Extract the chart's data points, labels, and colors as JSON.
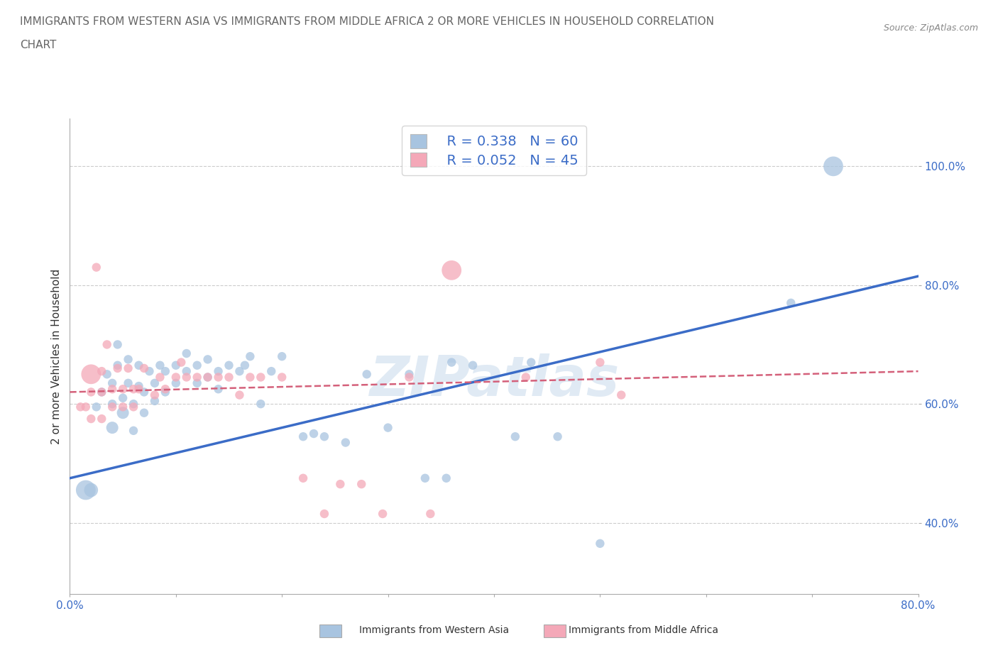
{
  "title_line1": "IMMIGRANTS FROM WESTERN ASIA VS IMMIGRANTS FROM MIDDLE AFRICA 2 OR MORE VEHICLES IN HOUSEHOLD CORRELATION",
  "title_line2": "CHART",
  "source": "Source: ZipAtlas.com",
  "ylabel": "2 or more Vehicles in Household",
  "xlim": [
    0.0,
    0.8
  ],
  "ylim": [
    0.28,
    1.08
  ],
  "ytick_positions": [
    0.4,
    0.6,
    0.8,
    1.0
  ],
  "ytick_labels": [
    "40.0%",
    "60.0%",
    "80.0%",
    "100.0%"
  ],
  "xtick_positions": [
    0.0,
    0.1,
    0.2,
    0.3,
    0.4,
    0.5,
    0.6,
    0.7,
    0.8
  ],
  "xtick_labels_shown": {
    "0.0": "0.0%",
    "0.8": "80.0%"
  },
  "grid_color": "#cccccc",
  "background_color": "#ffffff",
  "watermark": "ZIPatlas",
  "color_blue": "#a8c4e0",
  "color_pink": "#f4a8b8",
  "line_blue": "#3b6cc7",
  "line_pink": "#d4607a",
  "legend_label1": "Immigrants from Western Asia",
  "legend_label2": "Immigrants from Middle Africa",
  "legend_r1": "R = 0.338",
  "legend_n1": "N = 60",
  "legend_r2": "R = 0.052",
  "legend_n2": "N = 45",
  "blue_scatter_x": [
    0.015,
    0.02,
    0.025,
    0.03,
    0.035,
    0.04,
    0.04,
    0.04,
    0.045,
    0.045,
    0.05,
    0.05,
    0.055,
    0.055,
    0.06,
    0.06,
    0.065,
    0.065,
    0.07,
    0.07,
    0.075,
    0.08,
    0.08,
    0.085,
    0.09,
    0.09,
    0.1,
    0.1,
    0.11,
    0.11,
    0.12,
    0.12,
    0.13,
    0.13,
    0.14,
    0.14,
    0.15,
    0.16,
    0.165,
    0.17,
    0.18,
    0.19,
    0.2,
    0.22,
    0.23,
    0.24,
    0.26,
    0.28,
    0.3,
    0.32,
    0.335,
    0.355,
    0.36,
    0.38,
    0.42,
    0.435,
    0.46,
    0.5,
    0.68,
    0.72
  ],
  "blue_scatter_y": [
    0.455,
    0.455,
    0.595,
    0.62,
    0.65,
    0.56,
    0.6,
    0.635,
    0.665,
    0.7,
    0.585,
    0.61,
    0.635,
    0.675,
    0.555,
    0.6,
    0.63,
    0.665,
    0.585,
    0.62,
    0.655,
    0.605,
    0.635,
    0.665,
    0.62,
    0.655,
    0.635,
    0.665,
    0.655,
    0.685,
    0.635,
    0.665,
    0.645,
    0.675,
    0.625,
    0.655,
    0.665,
    0.655,
    0.665,
    0.68,
    0.6,
    0.655,
    0.68,
    0.545,
    0.55,
    0.545,
    0.535,
    0.65,
    0.56,
    0.65,
    0.475,
    0.475,
    0.67,
    0.665,
    0.545,
    0.67,
    0.545,
    0.365,
    0.77,
    1.0
  ],
  "blue_scatter_size": [
    400,
    200,
    80,
    80,
    80,
    150,
    80,
    80,
    80,
    80,
    150,
    80,
    80,
    80,
    80,
    80,
    80,
    80,
    80,
    80,
    80,
    80,
    80,
    80,
    80,
    80,
    80,
    80,
    80,
    80,
    80,
    80,
    80,
    80,
    80,
    80,
    80,
    80,
    80,
    80,
    80,
    80,
    80,
    80,
    80,
    80,
    80,
    80,
    80,
    80,
    80,
    80,
    80,
    80,
    80,
    80,
    80,
    80,
    80,
    400
  ],
  "pink_scatter_x": [
    0.01,
    0.015,
    0.02,
    0.02,
    0.02,
    0.025,
    0.03,
    0.03,
    0.03,
    0.035,
    0.04,
    0.04,
    0.045,
    0.05,
    0.05,
    0.055,
    0.06,
    0.06,
    0.065,
    0.07,
    0.08,
    0.085,
    0.09,
    0.1,
    0.105,
    0.11,
    0.12,
    0.13,
    0.14,
    0.15,
    0.16,
    0.17,
    0.18,
    0.2,
    0.22,
    0.24,
    0.255,
    0.275,
    0.295,
    0.32,
    0.34,
    0.36,
    0.43,
    0.5,
    0.52
  ],
  "pink_scatter_y": [
    0.595,
    0.595,
    0.575,
    0.62,
    0.65,
    0.83,
    0.575,
    0.62,
    0.655,
    0.7,
    0.595,
    0.625,
    0.66,
    0.595,
    0.625,
    0.66,
    0.595,
    0.625,
    0.625,
    0.66,
    0.615,
    0.645,
    0.625,
    0.645,
    0.67,
    0.645,
    0.645,
    0.645,
    0.645,
    0.645,
    0.615,
    0.645,
    0.645,
    0.645,
    0.475,
    0.415,
    0.465,
    0.465,
    0.415,
    0.645,
    0.415,
    0.825,
    0.645,
    0.67,
    0.615
  ],
  "pink_scatter_size": [
    80,
    80,
    80,
    80,
    400,
    80,
    80,
    80,
    80,
    80,
    80,
    80,
    80,
    80,
    80,
    80,
    80,
    80,
    80,
    80,
    80,
    80,
    80,
    80,
    80,
    80,
    80,
    80,
    80,
    80,
    80,
    80,
    80,
    80,
    80,
    80,
    80,
    80,
    80,
    80,
    80,
    400,
    80,
    80,
    80
  ],
  "blue_line_x": [
    0.0,
    0.8
  ],
  "blue_line_y": [
    0.475,
    0.815
  ],
  "pink_line_x": [
    0.0,
    0.8
  ],
  "pink_line_y": [
    0.62,
    0.655
  ],
  "title_fontsize": 11,
  "axis_label_fontsize": 11,
  "tick_fontsize": 11,
  "legend_fontsize": 14
}
